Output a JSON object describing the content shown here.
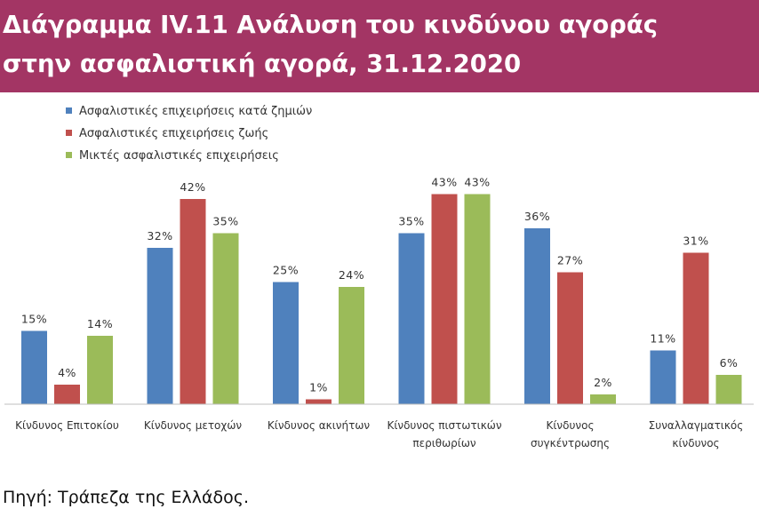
{
  "header": {
    "title_line1": "Διάγραμμα IV.11 Ανάλυση του κινδύνου αγοράς",
    "title_line2": "στην ασφαλιστική αγορά, 31.12.2020"
  },
  "source": "Πηγή: Τράπεζα της Ελλάδος.",
  "chart_data": {
    "type": "bar",
    "legend_position": "top-left",
    "grid": false,
    "ylim": [
      0,
      45
    ],
    "categories": [
      [
        "Κίνδυνος Επιτοκίου"
      ],
      [
        "Κίνδυνος μετοχών"
      ],
      [
        "Κίνδυνος ακινήτων"
      ],
      [
        "Κίνδυνος πιστωτικών",
        "περιθωρίων"
      ],
      [
        "Κίνδυνος",
        "συγκέντρωσης"
      ],
      [
        "Συναλλαγματικός",
        "κίνδυνος"
      ]
    ],
    "series": [
      {
        "name": "Ασφαλιστικές επιχειρήσεις κατά ζημιών",
        "color": "#4f81bd",
        "values": [
          15,
          32,
          25,
          35,
          36,
          11
        ]
      },
      {
        "name": "Ασφαλιστικές επιχειρήσεις ζωής",
        "color": "#c0504d",
        "values": [
          4,
          42,
          1,
          43,
          27,
          31
        ]
      },
      {
        "name": "Μικτές ασφαλιστικές επιχειρήσεις",
        "color": "#9bbb59",
        "values": [
          14,
          35,
          24,
          43,
          2,
          6
        ]
      }
    ],
    "value_suffix": "%"
  }
}
